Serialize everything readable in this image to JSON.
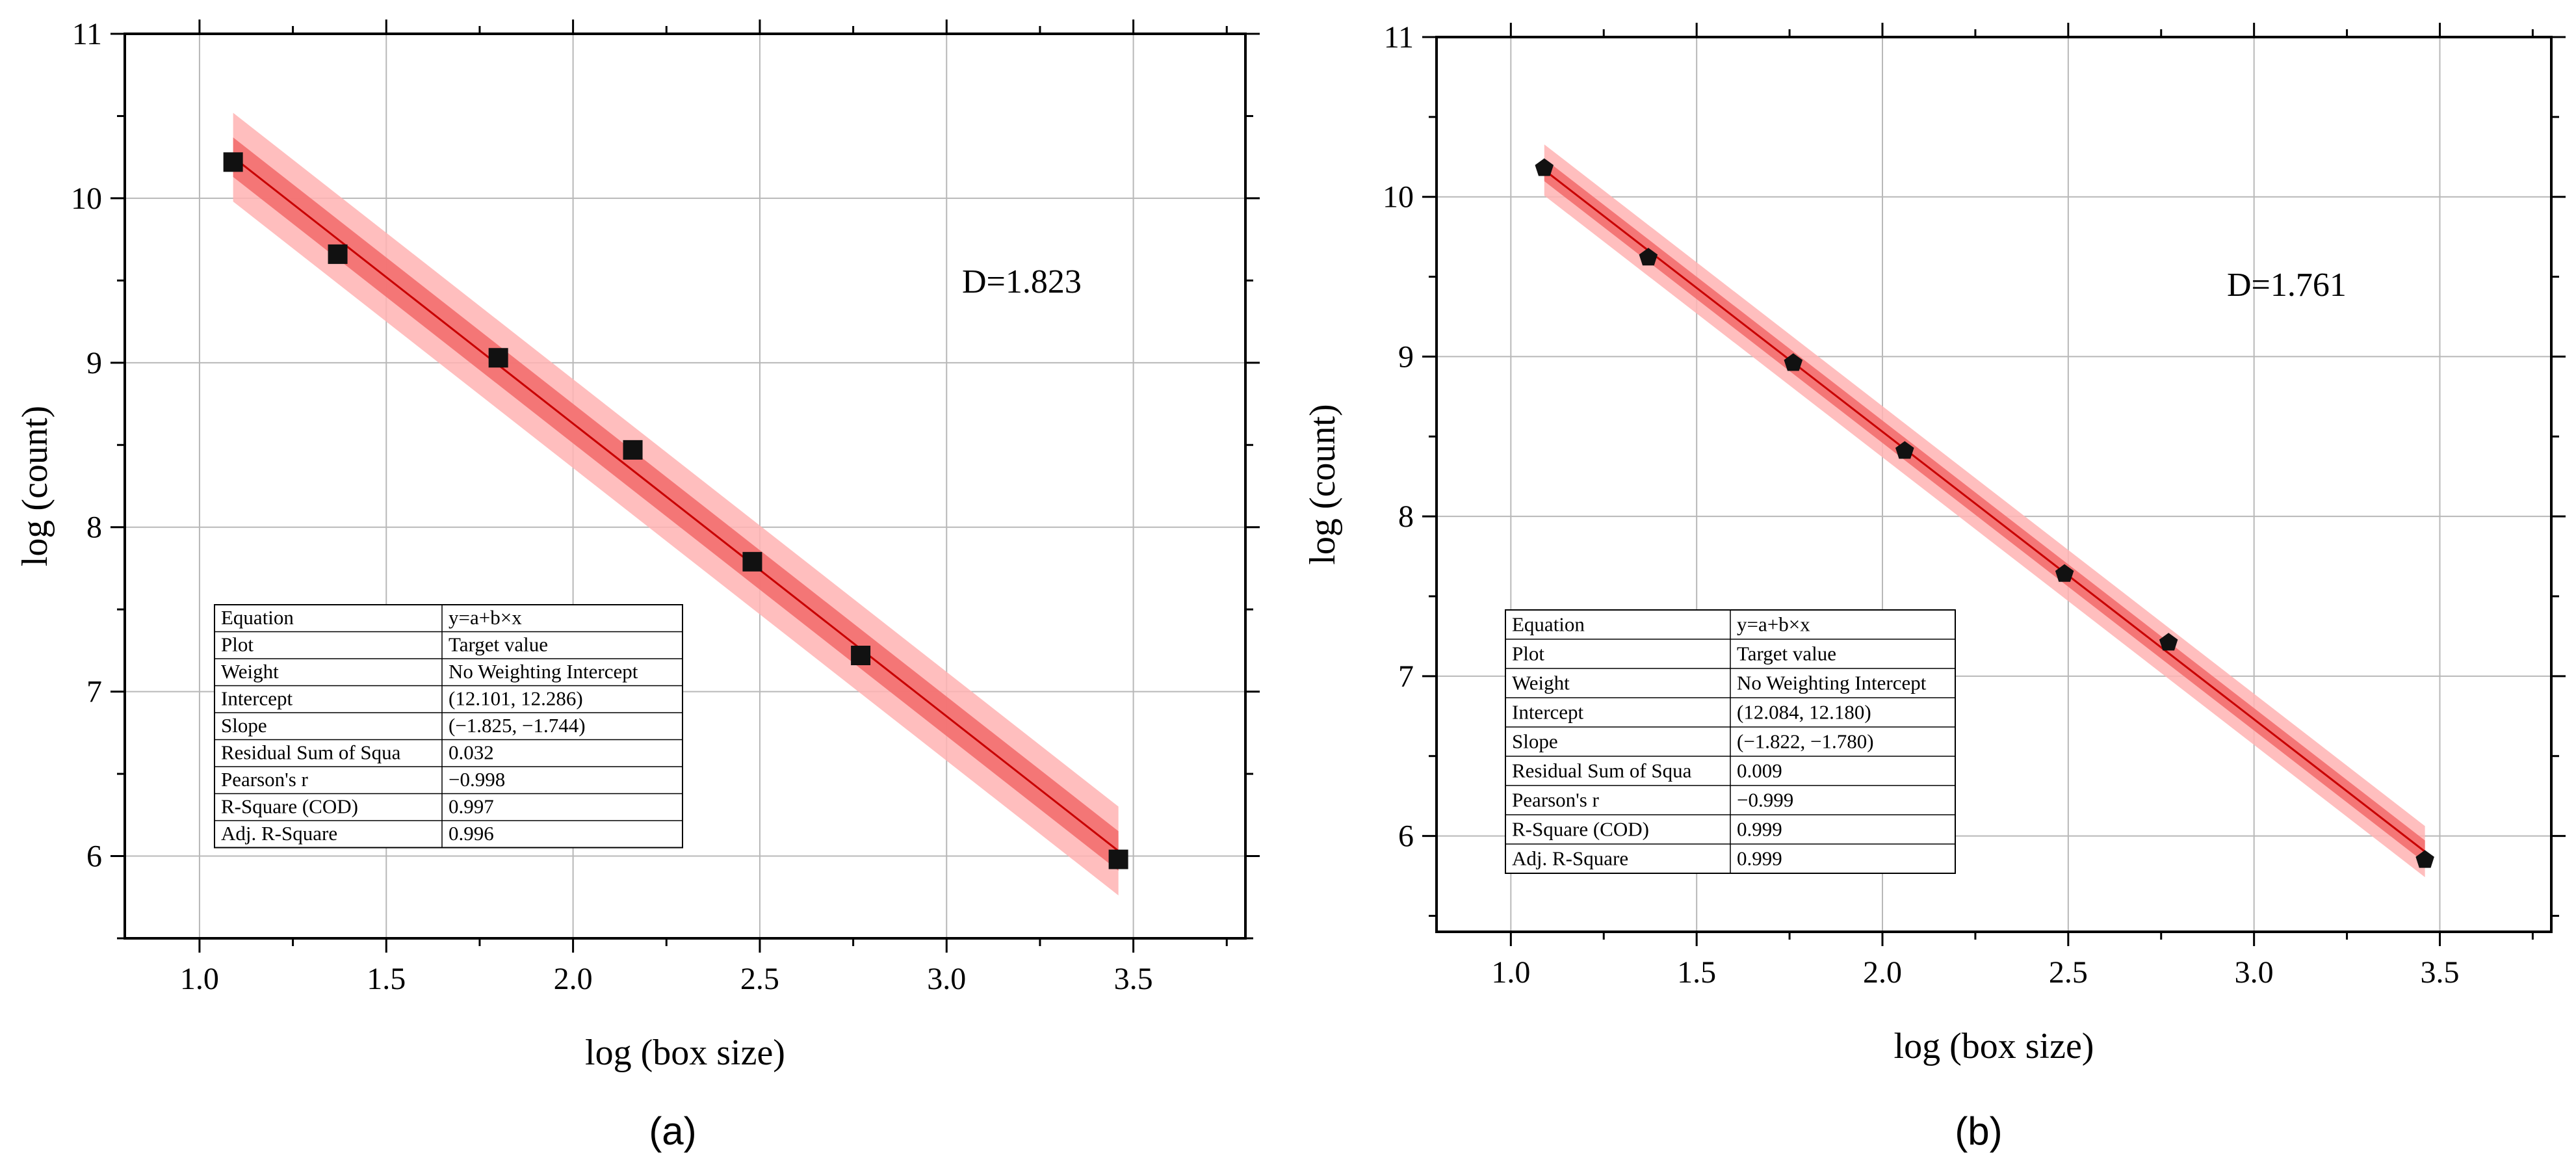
{
  "captions": [
    "(a)",
    "(b)"
  ],
  "chart_data": [
    {
      "type": "scatter",
      "panel_label": "(a)",
      "xlabel": "log (box size)",
      "ylabel": "log (count)",
      "xlim": [
        0.8,
        3.8
      ],
      "ylim": [
        5.5,
        11
      ],
      "xticks": [
        "1.0",
        "1.5",
        "2.0",
        "2.5",
        "3.0",
        "3.5"
      ],
      "xtick_values": [
        1.0,
        1.5,
        2.0,
        2.5,
        3.0,
        3.5
      ],
      "yticks": [
        "6",
        "7",
        "8",
        "9",
        "10",
        "11"
      ],
      "ytick_values": [
        6,
        7,
        8,
        9,
        10,
        11
      ],
      "grid": true,
      "marker": "square",
      "x": [
        1.09,
        1.37,
        1.8,
        2.16,
        2.48,
        2.77,
        3.46
      ],
      "y": [
        10.22,
        9.66,
        9.03,
        8.47,
        7.79,
        7.22,
        5.98
      ],
      "fit": {
        "intercept": 12.19,
        "slope": -1.78
      },
      "bands": {
        "confidence": 0.12,
        "prediction": 0.27
      },
      "annotation": "D=1.823",
      "colors": {
        "band_outer": "#ffb3b3",
        "band_inner": "#f26a6a",
        "fit_line": "#c80000",
        "marker": "#111111"
      },
      "stats_table": [
        [
          "Equation",
          "y=a+b×x"
        ],
        [
          "Plot",
          "Target value"
        ],
        [
          "Weight",
          "No Weighting Intercept"
        ],
        [
          "Intercept",
          "(12.101, 12.286)"
        ],
        [
          "Slope",
          "(−1.825, −1.744)"
        ],
        [
          "Residual Sum of Squa",
          "0.032"
        ],
        [
          "Pearson's r",
          "−0.998"
        ],
        [
          "R-Square (COD)",
          "0.997"
        ],
        [
          "Adj. R-Square",
          "0.996"
        ]
      ]
    },
    {
      "type": "scatter",
      "panel_label": "(b)",
      "xlabel": "log (box size)",
      "ylabel": "log (count)",
      "xlim": [
        0.8,
        3.8
      ],
      "ylim": [
        5.4,
        11
      ],
      "xticks": [
        "1.0",
        "1.5",
        "2.0",
        "2.5",
        "3.0",
        "3.5"
      ],
      "xtick_values": [
        1.0,
        1.5,
        2.0,
        2.5,
        3.0,
        3.5
      ],
      "yticks": [
        "6",
        "7",
        "8",
        "9",
        "10",
        "11"
      ],
      "ytick_values": [
        6,
        7,
        8,
        9,
        10,
        11
      ],
      "grid": true,
      "marker": "pentagon",
      "x": [
        1.09,
        1.37,
        1.76,
        2.06,
        2.49,
        2.77,
        3.46
      ],
      "y": [
        10.18,
        9.62,
        8.96,
        8.41,
        7.64,
        7.21,
        5.85
      ],
      "fit": {
        "intercept": 12.13,
        "slope": -1.8
      },
      "bands": {
        "confidence": 0.07,
        "prediction": 0.16
      },
      "annotation": "D=1.761",
      "colors": {
        "band_outer": "#ffb3b3",
        "band_inner": "#f26a6a",
        "fit_line": "#c80000",
        "marker": "#111111"
      },
      "stats_table": [
        [
          "Equation",
          "y=a+b×x"
        ],
        [
          "Plot",
          "Target value"
        ],
        [
          "Weight",
          "No Weighting Intercept"
        ],
        [
          "Intercept",
          "(12.084, 12.180)"
        ],
        [
          "Slope",
          "(−1.822, −1.780)"
        ],
        [
          "Residual Sum of Squa",
          "0.009"
        ],
        [
          "Pearson's r",
          "−0.999"
        ],
        [
          "R-Square (COD)",
          "0.999"
        ],
        [
          "Adj. R-Square",
          "0.999"
        ]
      ]
    }
  ]
}
